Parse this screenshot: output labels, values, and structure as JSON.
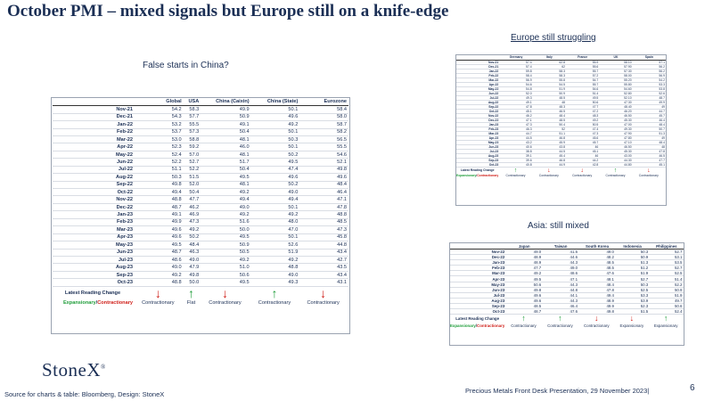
{
  "title": "October PMI – mixed signals but Europe still on a knife-edge",
  "china": {
    "subtitle": "False starts in China?",
    "headers": [
      "",
      "Global",
      "USA",
      "China (Caixin)",
      "China (State)",
      "Eurozone"
    ],
    "rows": [
      [
        "Nov-21",
        "54.2",
        "58.3",
        "49.9",
        "50.1",
        "58.4"
      ],
      [
        "Dec-21",
        "54.3",
        "57.7",
        "50.9",
        "49.6",
        "58.0"
      ],
      [
        "Jan-22",
        "53.2",
        "55.5",
        "49.1",
        "49.2",
        "58.7"
      ],
      [
        "Feb-22",
        "53.7",
        "57.3",
        "50.4",
        "50.1",
        "58.2"
      ],
      [
        "Mar-22",
        "53.0",
        "58.8",
        "48.1",
        "50.3",
        "56.5"
      ],
      [
        "Apr-22",
        "52.3",
        "59.2",
        "46.0",
        "50.1",
        "55.5"
      ],
      [
        "May-22",
        "52.4",
        "57.0",
        "48.1",
        "50.2",
        "54.6"
      ],
      [
        "Jun-22",
        "52.2",
        "52.7",
        "51.7",
        "49.5",
        "52.1"
      ],
      [
        "Jul-22",
        "51.1",
        "52.2",
        "50.4",
        "47.4",
        "49.8"
      ],
      [
        "Aug-22",
        "50.3",
        "51.5",
        "49.5",
        "49.6",
        "49.6"
      ],
      [
        "Sep-22",
        "49.8",
        "52.0",
        "48.1",
        "50.2",
        "48.4"
      ],
      [
        "Oct-22",
        "49.4",
        "50.4",
        "49.2",
        "49.0",
        "46.4"
      ],
      [
        "Nov-22",
        "48.8",
        "47.7",
        "49.4",
        "49.4",
        "47.1"
      ],
      [
        "Dec-22",
        "48.7",
        "46.2",
        "49.0",
        "50.1",
        "47.8"
      ],
      [
        "Jan-23",
        "49.1",
        "46.9",
        "49.2",
        "49.2",
        "48.8"
      ],
      [
        "Feb-23",
        "49.9",
        "47.3",
        "51.6",
        "48.0",
        "48.5"
      ],
      [
        "Mar-23",
        "49.6",
        "49.2",
        "50.0",
        "47.0",
        "47.3"
      ],
      [
        "Apr-23",
        "49.6",
        "50.2",
        "49.5",
        "50.1",
        "45.8"
      ],
      [
        "May-23",
        "49.5",
        "48.4",
        "50.9",
        "52.6",
        "44.8"
      ],
      [
        "Jun-23",
        "48.7",
        "46.3",
        "50.5",
        "51.9",
        "43.4"
      ],
      [
        "Jul-23",
        "48.6",
        "49.0",
        "49.2",
        "49.2",
        "42.7"
      ],
      [
        "Aug-23",
        "49.0",
        "47.9",
        "51.0",
        "48.8",
        "43.5"
      ],
      [
        "Sep-23",
        "49.2",
        "49.8",
        "50.6",
        "49.0",
        "43.4"
      ],
      [
        "Oct-23",
        "48.8",
        "50.0",
        "49.5",
        "49.3",
        "43.1"
      ]
    ],
    "latest_label": "Latest Reading Change",
    "arrows": [
      "down",
      "up",
      "down",
      "up",
      "down"
    ],
    "key_expansionary": "Expansionary",
    "key_slash": "/",
    "key_contractionary": "Contractionary",
    "statuses": [
      "Contractionary",
      "Flat",
      "Contractionary",
      "Contractionary",
      "Contractionary"
    ]
  },
  "europe": {
    "subtitle": "Europe still struggling",
    "headers": [
      "",
      "Germany",
      "Italy",
      "France",
      "UK",
      "Spain"
    ],
    "rows": [
      [
        "Nov-21",
        "57.4",
        "62.8",
        "55.9",
        "58.10",
        "57.1"
      ],
      [
        "Dec-21",
        "57.4",
        "62",
        "55.6",
        "57.90",
        "56.2"
      ],
      [
        "Jan-22",
        "59.8",
        "58.3",
        "55.7",
        "57.30",
        "56.2"
      ],
      [
        "Feb-22",
        "58.4",
        "58.3",
        "57.2",
        "58.00",
        "56.9"
      ],
      [
        "Mar-22",
        "56.9",
        "55.8",
        "54.7",
        "55.20",
        "54.2"
      ],
      [
        "Apr-22",
        "54.6",
        "54.5",
        "55.7",
        "55.80",
        "53.3"
      ],
      [
        "May-22",
        "54.8",
        "51.9",
        "54.6",
        "54.60",
        "53.8"
      ],
      [
        "Jun-22",
        "52.0",
        "50.9",
        "51.4",
        "52.80",
        "52.6"
      ],
      [
        "Jul-22",
        "49.3",
        "48.5",
        "49.5",
        "52.10",
        "48.7"
      ],
      [
        "Aug-22",
        "49.1",
        "48",
        "50.6",
        "47.30",
        "49.9"
      ],
      [
        "Sep-22",
        "47.8",
        "48.3",
        "47.7",
        "48.40",
        "49"
      ],
      [
        "Oct-22",
        "45.1",
        "46.5",
        "47.2",
        "46.20",
        "44.7"
      ],
      [
        "Nov-22",
        "46.2",
        "48.4",
        "48.3",
        "46.50",
        "45.7"
      ],
      [
        "Dec-22",
        "47.1",
        "48.5",
        "49.2",
        "45.30",
        "46.4"
      ],
      [
        "Jan-23",
        "47.3",
        "50.4",
        "50.5",
        "47.00",
        "48.4"
      ],
      [
        "Feb-23",
        "46.3",
        "52",
        "47.4",
        "49.30",
        "50.7"
      ],
      [
        "Mar-23",
        "44.7",
        "51.1",
        "47.3",
        "47.90",
        "51.3"
      ],
      [
        "Apr-23",
        "44.5",
        "46.8",
        "45.6",
        "47.80",
        "49"
      ],
      [
        "May-23",
        "43.2",
        "45.9",
        "45.7",
        "47.10",
        "48.4"
      ],
      [
        "Jun-23",
        "40.6",
        "43.8",
        "46",
        "46.50",
        "48"
      ],
      [
        "Jul-23",
        "38.8",
        "44.5",
        "45.1",
        "45.30",
        "47.8"
      ],
      [
        "Aug-23",
        "39.1",
        "45.4",
        "46",
        "43.00",
        "46.5"
      ],
      [
        "Sep-23",
        "39.6",
        "46.8",
        "44.2",
        "44.30",
        "47.7"
      ],
      [
        "Oct-23",
        "40.8",
        "44.9",
        "42.8",
        "44.80",
        "45.1"
      ]
    ],
    "latest_label": "Latest Reading Change",
    "arrows": [
      "up",
      "down",
      "down",
      "up",
      "down"
    ],
    "key_expansionary": "Expansionary",
    "key_slash": "/",
    "key_contractionary": "Contractionary",
    "statuses": [
      "Contractionary",
      "Contractionary",
      "Contractionary",
      "Contractionary",
      "Contractionary"
    ]
  },
  "asia": {
    "subtitle": "Asia: still mixed",
    "headers": [
      "",
      "Japan",
      "Taiwan",
      "South Korea",
      "Indonesia",
      "Philippines"
    ],
    "rows": [
      [
        "Nov-22",
        "49.0",
        "41.6",
        "49.0",
        "50.3",
        "52.7"
      ],
      [
        "Dec-22",
        "48.9",
        "44.6",
        "48.2",
        "50.9",
        "53.1"
      ],
      [
        "Jan-23",
        "48.9",
        "44.3",
        "48.5",
        "51.3",
        "53.5"
      ],
      [
        "Feb-23",
        "47.7",
        "49.0",
        "48.5",
        "51.2",
        "52.7"
      ],
      [
        "Mar-23",
        "49.2",
        "48.6",
        "47.6",
        "51.9",
        "52.5"
      ],
      [
        "Apr-23",
        "49.5",
        "47.1",
        "48.1",
        "52.7",
        "51.4"
      ],
      [
        "May-23",
        "50.6",
        "44.3",
        "48.4",
        "50.3",
        "52.2"
      ],
      [
        "Jun-23",
        "49.8",
        "44.8",
        "47.8",
        "52.5",
        "50.9"
      ],
      [
        "Jul-23",
        "49.6",
        "44.1",
        "49.4",
        "53.3",
        "51.9"
      ],
      [
        "Aug-23",
        "49.6",
        "44.3",
        "48.9",
        "53.9",
        "49.7"
      ],
      [
        "Sep-23",
        "48.5",
        "46.4",
        "49.9",
        "52.3",
        "50.6"
      ],
      [
        "Oct-23",
        "48.7",
        "47.6",
        "49.8",
        "51.5",
        "52.4"
      ]
    ],
    "latest_label": "Latest Reading Change",
    "arrows": [
      "up",
      "up",
      "down",
      "down",
      "up"
    ],
    "key_expansionary": "Expansionary",
    "key_slash": "/",
    "key_contractionary": "Contractionary",
    "statuses": [
      "Contractionary",
      "Contractionary",
      "Contractionary",
      "Expansionary",
      "Expansionary"
    ]
  },
  "colors": {
    "up": "#1f9d3a",
    "down": "#d0201a",
    "navy": "#1b2f55"
  },
  "logo": "StoneX",
  "logo_mark": "®",
  "source": "Source for charts & table: Bloomberg, Design: StoneX",
  "footer": "Precious Metals Front Desk Presentation, 29 November 2023|",
  "page_number": "6"
}
